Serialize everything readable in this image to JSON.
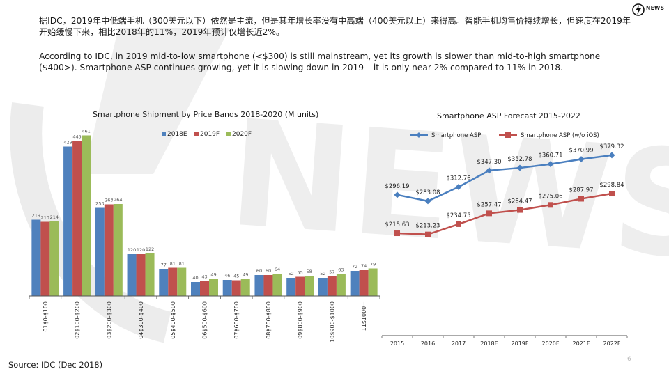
{
  "header": {
    "cn_text": "据IDC，2019年中低端手机（300美元以下）依然是主流，但是其年增长率没有中高端（400美元以上）来得高。智能手机均售价持续增长，但速度在2019年开始缓慢下来，相比2018年的11%，2019年预计仅增长近2%。",
    "en_text": "According to IDC, in 2019 mid-to-low smartphone (<$300) is still mainstream, yet its growth is slower than mid-to-high smartphone ($400>). Smartphone ASP continues growing, yet it is slowing down in 2019 – it is only near 2% compared to 11% in 2018."
  },
  "logo": {
    "text": "NEWS",
    "icon": "lightning-bolt-icon"
  },
  "watermark": {
    "text": "NEWS",
    "color": "#ececec"
  },
  "source": "Source: IDC (Dec 2018)",
  "page_number": "6",
  "chart_data": [
    {
      "type": "bar",
      "title": "Smartphone Shipment by Price Bands 2018-2020 (M units)",
      "categories": [
        "01$0-$100",
        "02$100-$200",
        "03$200-$300",
        "04$300-$400",
        "05$400-$500",
        "06$500-$600",
        "07$600-$700",
        "08$700-$800",
        "09$800-$900",
        "10$900-$1000",
        "11$1000+"
      ],
      "series": [
        {
          "name": "2018E",
          "color": "#4f81bd",
          "values": [
            219,
            429,
            253,
            120,
            77,
            40,
            46,
            60,
            52,
            52,
            72
          ]
        },
        {
          "name": "2019F",
          "color": "#c0504d",
          "values": [
            213,
            445,
            263,
            120,
            81,
            43,
            45,
            60,
            55,
            57,
            74
          ]
        },
        {
          "name": "2020F",
          "color": "#9bbb59",
          "values": [
            214,
            461,
            264,
            122,
            81,
            49,
            49,
            64,
            58,
            63,
            79
          ]
        }
      ],
      "ylim": [
        0,
        500
      ],
      "legend": "top"
    },
    {
      "type": "line",
      "title": "Smartphone ASP Forecast 2015-2022",
      "x": [
        "2015",
        "2016",
        "2017",
        "2018E",
        "2019F",
        "2020F",
        "2021F",
        "2022F"
      ],
      "series": [
        {
          "name": "Smartphone ASP",
          "color": "#4a7fbf",
          "marker": "diamond",
          "values": [
            296.19,
            283.08,
            312.76,
            347.3,
            352.78,
            360.71,
            370.99,
            379.32
          ],
          "labels": [
            "$296.19",
            "$283.08",
            "$312.76",
            "$347.30",
            "$352.78",
            "$360.71",
            "$370.99",
            "$379.32"
          ]
        },
        {
          "name": "Smartphone ASP (w/o iOS)",
          "color": "#c0504d",
          "marker": "square",
          "values": [
            215.63,
            213.23,
            234.75,
            257.47,
            264.47,
            275.06,
            287.97,
            298.84
          ],
          "labels": [
            "$215.63",
            "$213.23",
            "$234.75",
            "$257.47",
            "$264.47",
            "$275.06",
            "$287.97",
            "$298.84"
          ]
        }
      ],
      "ylim": [
        150,
        420
      ],
      "legend": "top"
    }
  ]
}
